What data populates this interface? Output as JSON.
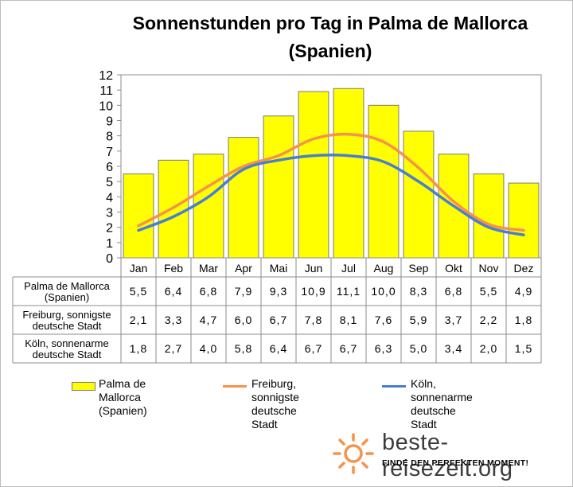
{
  "chart_data": {
    "type": "bar",
    "title": "Sonnenstunden pro Tag in Palma de Mallorca (Spanien)",
    "categories": [
      "Jan",
      "Feb",
      "Mar",
      "Apr",
      "Mai",
      "Jun",
      "Jul",
      "Aug",
      "Sep",
      "Okt",
      "Nov",
      "Dez"
    ],
    "ylim": [
      0,
      12
    ],
    "yticks": [
      "0",
      "1",
      "2",
      "3",
      "4",
      "5",
      "6",
      "7",
      "8",
      "9",
      "10",
      "11",
      "12"
    ],
    "grid": false,
    "legend_position": "bottom",
    "series": [
      {
        "name": "Palma de Mallorca (Spanien)",
        "kind": "bar",
        "color": "#ffff00",
        "values": [
          5.5,
          6.4,
          6.8,
          7.9,
          9.3,
          10.9,
          11.1,
          10.0,
          8.3,
          6.8,
          5.5,
          4.9
        ],
        "labels": [
          "5,5",
          "6,4",
          "6,8",
          "7,9",
          "9,3",
          "10,9",
          "11,1",
          "10,0",
          "8,3",
          "6,8",
          "5,5",
          "4,9"
        ]
      },
      {
        "name": "Freiburg, sonnigste deutsche Stadt",
        "kind": "line",
        "color": "#f7924a",
        "values": [
          2.1,
          3.3,
          4.7,
          6.0,
          6.7,
          7.8,
          8.1,
          7.6,
          5.9,
          3.7,
          2.2,
          1.8
        ],
        "labels": [
          "2,1",
          "3,3",
          "4,7",
          "6,0",
          "6,7",
          "7,8",
          "8,1",
          "7,6",
          "5,9",
          "3,7",
          "2,2",
          "1,8"
        ]
      },
      {
        "name": "Köln, sonnenarme deutsche Stadt",
        "kind": "line",
        "color": "#4a7fcf",
        "values": [
          1.8,
          2.7,
          4.0,
          5.8,
          6.4,
          6.7,
          6.7,
          6.3,
          5.0,
          3.4,
          2.0,
          1.5
        ],
        "labels": [
          "1,8",
          "2,7",
          "4,0",
          "5,8",
          "6,4",
          "6,7",
          "6,7",
          "6,3",
          "5,0",
          "3,4",
          "2,0",
          "1,5"
        ]
      }
    ],
    "table_row_labels": [
      [
        "Palma de Mallorca",
        "(Spanien)"
      ],
      [
        "Freiburg, sonnigste",
        "deutsche Stadt"
      ],
      [
        "Köln, sonnenarme",
        "deutsche Stadt"
      ]
    ],
    "legend_labels": [
      "Palma de Mallorca\n(Spanien)",
      "Freiburg, sonnigste\ndeutsche Stadt",
      "Köln, sonnenarme\ndeutsche Stadt"
    ]
  },
  "branding": {
    "name": "beste-reisezeit.org",
    "slogan": "FINDE DEN PERFEKTEN MOMENT!",
    "logo_icon": "sun-icon",
    "logo_color": "#f7924a"
  }
}
